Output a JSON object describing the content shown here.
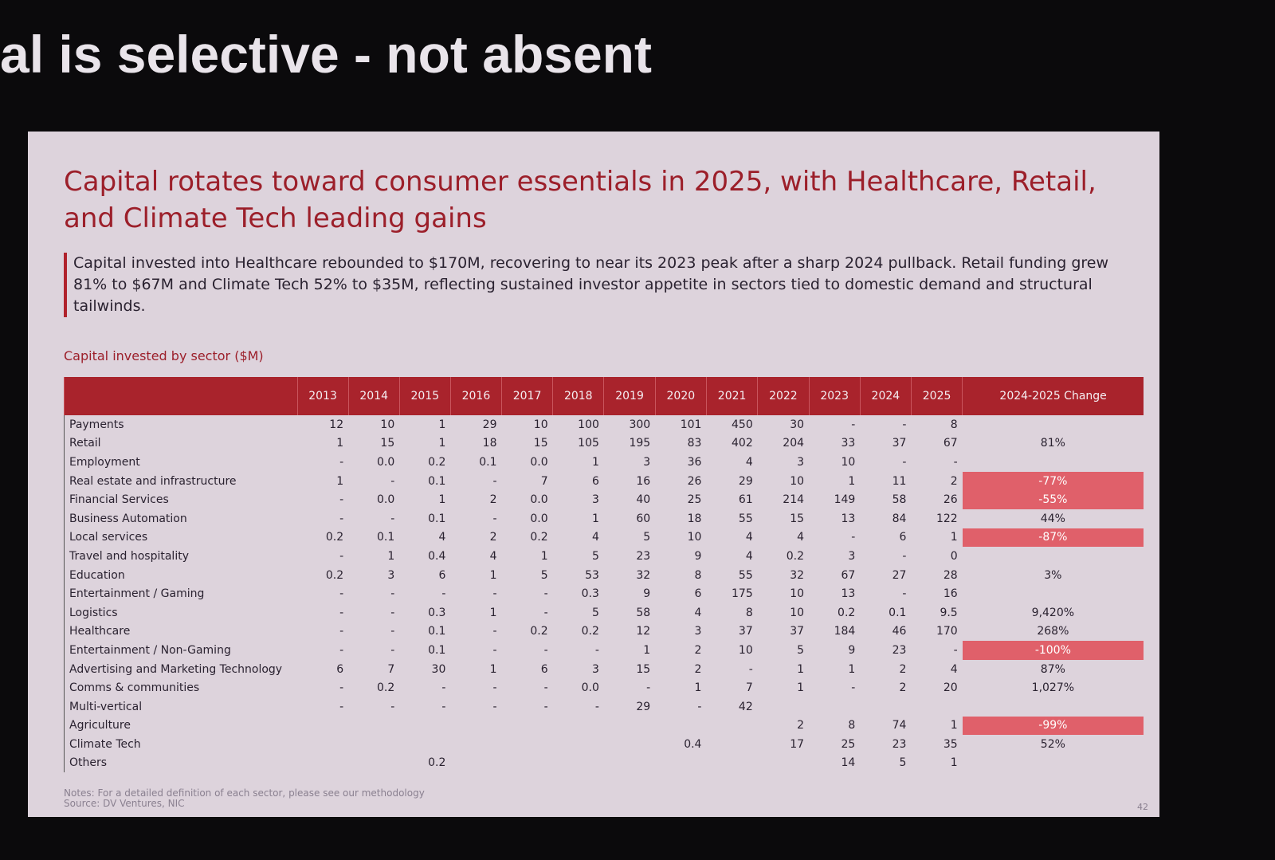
{
  "headline": "al is selective - not absent",
  "slide": {
    "title": "Capital rotates toward consumer essentials in 2025, with Healthcare, Retail, and Climate Tech leading gains",
    "summary": "Capital invested into Healthcare rebounded to $170M, recovering to near its 2023 peak after a sharp 2024 pullback. Retail funding grew 81% to $67M and Climate Tech 52% to $35M, reflecting sustained investor appetite in sectors tied to domestic demand and structural tailwinds.",
    "caption": "Capital invested by sector ($M)",
    "table": {
      "columns": [
        "2013",
        "2014",
        "2015",
        "2016",
        "2017",
        "2018",
        "2019",
        "2020",
        "2021",
        "2022",
        "2023",
        "2024",
        "2025",
        "2024-2025 Change"
      ],
      "rows": [
        {
          "label": "Payments",
          "cells": [
            "12",
            "10",
            "1",
            "29",
            "10",
            "100",
            "300",
            "101",
            "450",
            "30",
            "-",
            "-",
            "8",
            null
          ]
        },
        {
          "label": "Retail",
          "cells": [
            "1",
            "15",
            "1",
            "18",
            "15",
            "105",
            "195",
            "83",
            "402",
            "204",
            "33",
            "37",
            "67",
            "81%"
          ]
        },
        {
          "label": "Employment",
          "cells": [
            "-",
            "0.0",
            "0.2",
            "0.1",
            "0.0",
            "1",
            "3",
            "36",
            "4",
            "3",
            "10",
            "-",
            "-",
            null
          ]
        },
        {
          "label": "Real estate and infrastructure",
          "cells": [
            "1",
            "-",
            "0.1",
            "-",
            "7",
            "6",
            "16",
            "26",
            "29",
            "10",
            "1",
            "11",
            "2",
            "-77%"
          ]
        },
        {
          "label": "Financial Services",
          "cells": [
            "-",
            "0.0",
            "1",
            "2",
            "0.0",
            "3",
            "40",
            "25",
            "61",
            "214",
            "149",
            "58",
            "26",
            "-55%"
          ]
        },
        {
          "label": "Business Automation",
          "cells": [
            "-",
            "-",
            "0.1",
            "-",
            "0.0",
            "1",
            "60",
            "18",
            "55",
            "15",
            "13",
            "84",
            "122",
            "44%"
          ]
        },
        {
          "label": "Local services",
          "cells": [
            "0.2",
            "0.1",
            "4",
            "2",
            "0.2",
            "4",
            "5",
            "10",
            "4",
            "4",
            "-",
            "6",
            "1",
            "-87%"
          ]
        },
        {
          "label": "Travel and hospitality",
          "cells": [
            "-",
            "1",
            "0.4",
            "4",
            "1",
            "5",
            "23",
            "9",
            "4",
            "0.2",
            "3",
            "-",
            "0",
            null
          ]
        },
        {
          "label": "Education",
          "cells": [
            "0.2",
            "3",
            "6",
            "1",
            "5",
            "53",
            "32",
            "8",
            "55",
            "32",
            "67",
            "27",
            "28",
            "3%"
          ]
        },
        {
          "label": "Entertainment / Gaming",
          "cells": [
            "-",
            "-",
            "-",
            "-",
            "-",
            "0.3",
            "9",
            "6",
            "175",
            "10",
            "13",
            "-",
            "16",
            null
          ]
        },
        {
          "label": "Logistics",
          "cells": [
            "-",
            "-",
            "0.3",
            "1",
            "-",
            "5",
            "58",
            "4",
            "8",
            "10",
            "0.2",
            "0.1",
            "9.5",
            "9,420%"
          ]
        },
        {
          "label": "Healthcare",
          "cells": [
            "-",
            "-",
            "0.1",
            "-",
            "0.2",
            "0.2",
            "12",
            "3",
            "37",
            "37",
            "184",
            "46",
            "170",
            "268%"
          ]
        },
        {
          "label": "Entertainment / Non-Gaming",
          "cells": [
            "-",
            "-",
            "0.1",
            "-",
            "-",
            "-",
            "1",
            "2",
            "10",
            "5",
            "9",
            "23",
            "-",
            "-100%"
          ]
        },
        {
          "label": "Advertising and Marketing Technology",
          "cells": [
            "6",
            "7",
            "30",
            "1",
            "6",
            "3",
            "15",
            "2",
            "-",
            "1",
            "1",
            "2",
            "4",
            "87%"
          ]
        },
        {
          "label": "Comms & communities",
          "cells": [
            "-",
            "0.2",
            "-",
            "-",
            "-",
            "0.0",
            "-",
            "1",
            "7",
            "1",
            "-",
            "2",
            "20",
            "1,027%"
          ]
        },
        {
          "label": "Multi-vertical",
          "cells": [
            "-",
            "-",
            "-",
            "-",
            "-",
            "-",
            "29",
            "-",
            "42",
            null,
            null,
            null,
            null,
            null
          ]
        },
        {
          "label": "Agriculture",
          "cells": [
            null,
            null,
            null,
            null,
            null,
            null,
            null,
            null,
            null,
            "2",
            "8",
            "74",
            "1",
            "-99%"
          ]
        },
        {
          "label": "Climate Tech",
          "cells": [
            null,
            null,
            null,
            null,
            null,
            null,
            null,
            "0.4",
            null,
            "17",
            "25",
            "23",
            "35",
            "52%"
          ]
        },
        {
          "label": "Others",
          "cells": [
            null,
            null,
            "0.2",
            null,
            null,
            null,
            null,
            null,
            null,
            null,
            "14",
            "5",
            "1",
            null
          ]
        }
      ]
    },
    "notes": "Notes: For a detailed definition of each sector, please see our methodology",
    "source": "Source: DV Ventures, NIC",
    "page": "42"
  }
}
